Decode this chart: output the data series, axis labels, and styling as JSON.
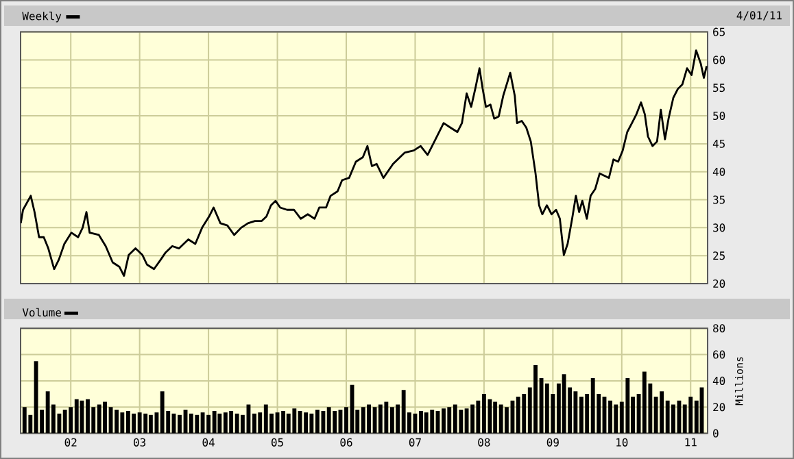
{
  "chart_data": [
    {
      "type": "line",
      "annotations": [
        "4/01/11"
      ],
      "legend": "top left",
      "grid": true,
      "tick_labels": "y",
      "xlim": [
        "2001-04-10",
        "2011-04-01"
      ],
      "ylim": [
        20,
        65
      ],
      "yticks": [
        20,
        25,
        30,
        35,
        40,
        45,
        50,
        55,
        60,
        65
      ],
      "xticks": [
        {
          "value": "2002-01-01",
          "label": null
        },
        {
          "value": "2003-01-01",
          "label": null
        },
        {
          "value": "2004-01-01",
          "label": null
        },
        {
          "value": "2005-01-01",
          "label": null
        },
        {
          "value": "2006-01-01",
          "label": null
        },
        {
          "value": "2007-01-01",
          "label": null
        },
        {
          "value": "2008-01-01",
          "label": null
        },
        {
          "value": "2009-01-01",
          "label": null
        },
        {
          "value": "2010-01-01",
          "label": null
        },
        {
          "value": "2011-01-01",
          "label": null
        }
      ],
      "series": [
        {
          "name": "Weekly",
          "color": "#000000",
          "x": [
            "2001-04-11",
            "2001-04-23",
            "2001-06-03",
            "2001-06-23",
            "2001-07-17",
            "2001-08-11",
            "2001-09-04",
            "2001-10-05",
            "2001-10-30",
            "2001-11-28",
            "2002-01-04",
            "2002-02-09",
            "2002-03-05",
            "2002-03-25",
            "2002-04-11",
            "2002-05-30",
            "2002-07-05",
            "2002-08-11",
            "2002-09-16",
            "2002-10-10",
            "2002-11-04",
            "2002-12-10",
            "2003-01-16",
            "2003-02-09",
            "2003-03-18",
            "2003-04-23",
            "2003-05-17",
            "2003-06-23",
            "2003-07-29",
            "2003-09-16",
            "2003-10-23",
            "2003-11-28",
            "2004-01-04",
            "2004-01-28",
            "2004-03-05",
            "2004-04-11",
            "2004-05-17",
            "2004-06-23",
            "2004-07-29",
            "2004-09-04",
            "2004-10-10",
            "2004-11-04",
            "2004-11-28",
            "2004-12-22",
            "2005-01-16",
            "2005-02-21",
            "2005-03-30",
            "2005-05-05",
            "2005-06-11",
            "2005-07-17",
            "2005-08-11",
            "2005-09-16",
            "2005-10-10",
            "2005-11-16",
            "2005-12-10",
            "2006-01-16",
            "2006-02-21",
            "2006-03-30",
            "2006-04-23",
            "2006-05-17",
            "2006-06-11",
            "2006-07-17",
            "2006-09-06",
            "2006-11-06",
            "2006-12-25",
            "2007-01-30",
            "2007-03-08",
            "2007-04-13",
            "2007-06-01",
            "2007-07-07",
            "2007-08-13",
            "2007-09-06",
            "2007-10-01",
            "2007-10-25",
            "2007-11-18",
            "2007-12-08",
            "2007-12-25",
            "2008-01-11",
            "2008-02-04",
            "2008-02-24",
            "2008-03-20",
            "2008-04-13",
            "2008-05-20",
            "2008-06-13",
            "2008-06-25",
            "2008-07-20",
            "2008-08-13",
            "2008-09-06",
            "2008-10-01",
            "2008-10-20",
            "2008-11-06",
            "2008-11-30",
            "2008-12-25",
            "2009-01-18",
            "2009-02-07",
            "2009-02-28",
            "2009-03-20",
            "2009-04-13",
            "2009-05-03",
            "2009-05-20",
            "2009-06-06",
            "2009-06-30",
            "2009-07-20",
            "2009-08-13",
            "2009-09-06",
            "2009-10-01",
            "2009-10-25",
            "2009-11-18",
            "2009-12-13",
            "2010-01-06",
            "2010-01-30",
            "2010-02-24",
            "2010-03-20",
            "2010-04-13",
            "2010-05-03",
            "2010-05-20",
            "2010-06-13",
            "2010-07-07",
            "2010-07-27",
            "2010-08-18",
            "2010-09-06",
            "2010-10-01",
            "2010-10-25",
            "2010-11-18",
            "2010-12-13",
            "2011-01-06",
            "2011-01-30",
            "2011-02-24",
            "2011-03-12",
            "2011-03-27"
          ],
          "values": [
            30.8,
            33.2,
            35.7,
            32.8,
            28.3,
            28.3,
            26.3,
            22.6,
            24.3,
            27.1,
            29.1,
            28.3,
            30.0,
            32.8,
            29.1,
            28.7,
            26.7,
            23.8,
            23.0,
            21.4,
            25.1,
            26.3,
            25.1,
            23.4,
            22.6,
            24.3,
            25.5,
            26.7,
            26.3,
            27.9,
            27.1,
            30.0,
            32.0,
            33.6,
            30.8,
            30.4,
            28.7,
            30.0,
            30.8,
            31.2,
            31.2,
            32.0,
            34.0,
            34.8,
            33.6,
            33.2,
            33.2,
            31.6,
            32.4,
            31.6,
            33.6,
            33.6,
            35.7,
            36.5,
            38.5,
            38.9,
            41.8,
            42.6,
            44.6,
            41.0,
            41.4,
            38.9,
            41.4,
            43.4,
            43.8,
            44.6,
            43.0,
            45.4,
            48.7,
            47.9,
            47.1,
            48.7,
            54.0,
            51.6,
            55.2,
            58.5,
            54.8,
            51.6,
            52.0,
            49.5,
            49.9,
            53.6,
            57.7,
            53.6,
            48.7,
            49.1,
            47.9,
            45.4,
            39.7,
            34.0,
            32.4,
            34.0,
            32.4,
            33.2,
            31.6,
            25.1,
            27.1,
            31.6,
            35.7,
            32.8,
            34.8,
            31.6,
            35.7,
            36.9,
            39.7,
            39.3,
            38.9,
            42.2,
            41.8,
            43.8,
            47.1,
            48.7,
            50.3,
            52.4,
            50.3,
            46.3,
            44.6,
            45.4,
            51.1,
            45.8,
            49.5,
            53.2,
            54.8,
            55.6,
            58.5,
            57.3,
            61.7,
            59.3,
            56.8,
            58.9
          ]
        }
      ]
    },
    {
      "type": "bar",
      "ylabel": "Millions",
      "legend": "top left",
      "grid": true,
      "xlim": [
        "2001-04-10",
        "2011-04-01"
      ],
      "ylim": [
        0,
        80
      ],
      "yticks": [
        0,
        20,
        40,
        60,
        80
      ],
      "xticks": [
        {
          "value": "2002-01-01",
          "label": "02"
        },
        {
          "value": "2003-01-01",
          "label": "03"
        },
        {
          "value": "2004-01-01",
          "label": "04"
        },
        {
          "value": "2005-01-01",
          "label": "05"
        },
        {
          "value": "2006-01-01",
          "label": "06"
        },
        {
          "value": "2007-01-01",
          "label": "07"
        },
        {
          "value": "2008-01-01",
          "label": "08"
        },
        {
          "value": "2009-01-01",
          "label": "09"
        },
        {
          "value": "2010-01-01",
          "label": "10"
        },
        {
          "value": "2011-01-01",
          "label": "11"
        }
      ],
      "series": [
        {
          "name": "Volume",
          "color": "#000000",
          "x": [
            "2001-05",
            "2001-06",
            "2001-07",
            "2001-08",
            "2001-09",
            "2001-10",
            "2001-11",
            "2001-12",
            "2002-01",
            "2002-02",
            "2002-03",
            "2002-04",
            "2002-05",
            "2002-06",
            "2002-07",
            "2002-08",
            "2002-09",
            "2002-10",
            "2002-11",
            "2002-12",
            "2003-01",
            "2003-02",
            "2003-03",
            "2003-04",
            "2003-05",
            "2003-06",
            "2003-07",
            "2003-08",
            "2003-09",
            "2003-10",
            "2003-11",
            "2003-12",
            "2004-01",
            "2004-02",
            "2004-03",
            "2004-04",
            "2004-05",
            "2004-06",
            "2004-07",
            "2004-08",
            "2004-09",
            "2004-10",
            "2004-11",
            "2004-12",
            "2005-01",
            "2005-02",
            "2005-03",
            "2005-04",
            "2005-05",
            "2005-06",
            "2005-07",
            "2005-08",
            "2005-09",
            "2005-10",
            "2005-11",
            "2005-12",
            "2006-01",
            "2006-02",
            "2006-03",
            "2006-04",
            "2006-05",
            "2006-06",
            "2006-07",
            "2006-08",
            "2006-09",
            "2006-10",
            "2006-11",
            "2006-12",
            "2007-01",
            "2007-02",
            "2007-03",
            "2007-04",
            "2007-05",
            "2007-06",
            "2007-07",
            "2007-08",
            "2007-09",
            "2007-10",
            "2007-11",
            "2007-12",
            "2008-01",
            "2008-02",
            "2008-03",
            "2008-04",
            "2008-05",
            "2008-06",
            "2008-07",
            "2008-08",
            "2008-09",
            "2008-10",
            "2008-11",
            "2008-12",
            "2009-01",
            "2009-02",
            "2009-03",
            "2009-04",
            "2009-05",
            "2009-06",
            "2009-07",
            "2009-08",
            "2009-09",
            "2009-10",
            "2009-11",
            "2009-12",
            "2010-01",
            "2010-02",
            "2010-03",
            "2010-04",
            "2010-05",
            "2010-06",
            "2010-07",
            "2010-08",
            "2010-09",
            "2010-10",
            "2010-11",
            "2010-12",
            "2011-01",
            "2011-02",
            "2011-03"
          ],
          "values": [
            20,
            14,
            55,
            18,
            32,
            22,
            15,
            18,
            20,
            26,
            25,
            26,
            20,
            22,
            24,
            20,
            18,
            16,
            17,
            15,
            16,
            15,
            14,
            16,
            32,
            17,
            15,
            14,
            18,
            15,
            14,
            16,
            14,
            17,
            15,
            16,
            17,
            15,
            14,
            22,
            15,
            16,
            22,
            15,
            16,
            17,
            15,
            19,
            17,
            16,
            15,
            18,
            17,
            20,
            17,
            18,
            20,
            37,
            18,
            20,
            22,
            20,
            22,
            24,
            20,
            22,
            33,
            16,
            15,
            17,
            16,
            18,
            17,
            19,
            20,
            22,
            18,
            19,
            22,
            25,
            30,
            26,
            24,
            22,
            20,
            25,
            28,
            30,
            35,
            52,
            42,
            38,
            30,
            38,
            45,
            35,
            32,
            28,
            30,
            42,
            30,
            28,
            25,
            22,
            24,
            42,
            28,
            30,
            47,
            38,
            28,
            32,
            25,
            22,
            25,
            22,
            28,
            25,
            35
          ]
        }
      ]
    }
  ]
}
